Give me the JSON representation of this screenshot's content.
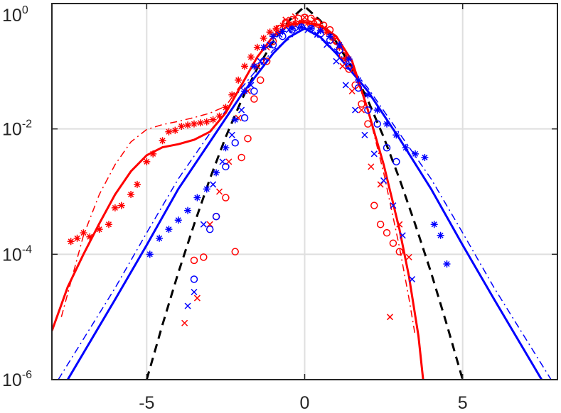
{
  "chart_data": {
    "type": "scatter",
    "title": "",
    "xlabel": "",
    "ylabel": "",
    "xlim": [
      -8,
      8
    ],
    "ylim": [
      1e-06,
      1
    ],
    "yscale": "log",
    "grid": true,
    "x_ticks": [
      {
        "value": -5,
        "label": "-5"
      },
      {
        "value": 0,
        "label": "0"
      },
      {
        "value": 5,
        "label": "5"
      }
    ],
    "y_ticks": [
      {
        "value": 1e-06,
        "base": "10",
        "exp": "-6"
      },
      {
        "value": 0.0001,
        "base": "10",
        "exp": "-4"
      },
      {
        "value": 0.01,
        "base": "10",
        "exp": "-2"
      },
      {
        "value": 1,
        "base": "10",
        "exp": "0"
      }
    ],
    "colors": {
      "red": "#ff0000",
      "blue": "#0000ff",
      "black": "#000000"
    },
    "series": [
      {
        "color": "#000000",
        "style": "dashed",
        "marker": "none",
        "x": [
          -5,
          -4.5,
          -4,
          -3.5,
          -3,
          -2.5,
          -2,
          -1.5,
          -1,
          -0.5,
          0,
          0.5,
          1,
          1.5,
          2,
          2.5,
          3,
          3.5,
          4,
          4.5,
          5
        ],
        "y": [
          1e-06,
          7.5e-06,
          5.1e-05,
          0.0003,
          0.0016,
          0.0074,
          0.0286,
          0.0929,
          0.2458,
          0.5303,
          0.9,
          0.5303,
          0.2458,
          0.0929,
          0.0286,
          0.0074,
          0.0016,
          0.0003,
          5.1e-05,
          7.5e-06,
          1e-06
        ]
      },
      {
        "color": "#0000ff",
        "style": "solid",
        "marker": "none",
        "x": [
          -7.5,
          -6,
          -5,
          -4,
          -3,
          -2,
          -1,
          -0.5,
          0,
          0.5,
          1,
          2,
          3,
          4,
          5,
          6,
          7.5
        ],
        "y": [
          1e-06,
          1.9e-05,
          0.00014,
          0.0011,
          0.0062,
          0.035,
          0.16,
          0.29,
          0.4,
          0.29,
          0.16,
          0.04,
          0.007,
          0.0011,
          0.00014,
          1.9e-05,
          1e-06
        ]
      },
      {
        "color": "#0000ff",
        "style": "dashdot",
        "marker": "none",
        "x": [
          -7.8,
          -6,
          -5,
          -4,
          -3,
          -2,
          -1,
          0,
          1,
          2,
          3,
          4,
          5,
          6,
          7.8
        ],
        "y": [
          1e-06,
          2.9e-05,
          0.00022,
          0.0016,
          0.0085,
          0.045,
          0.18,
          0.41,
          0.18,
          0.045,
          0.0085,
          0.0016,
          0.00022,
          2.9e-05,
          1e-06
        ]
      },
      {
        "color": "#ff0000",
        "style": "solid",
        "marker": "none",
        "x": [
          -8,
          -7.5,
          -7,
          -6.5,
          -6,
          -5.5,
          -5,
          -4.5,
          -4,
          -3.5,
          -3,
          -2.5,
          -2,
          -1.5,
          -1,
          -0.5,
          0,
          0.5,
          1,
          1.5,
          2,
          2.5,
          3,
          3.3,
          3.6,
          3.75
        ],
        "y": [
          6e-06,
          3e-05,
          0.0001,
          0.00031,
          0.0009,
          0.0021,
          0.0038,
          0.0051,
          0.0057,
          0.0067,
          0.009,
          0.018,
          0.05,
          0.14,
          0.3,
          0.45,
          0.5,
          0.45,
          0.3,
          0.12,
          0.02,
          0.0027,
          0.00025,
          4.5e-05,
          5e-06,
          1e-06
        ]
      },
      {
        "color": "#ff0000",
        "style": "dashdot",
        "marker": "none",
        "x": [
          -7.7,
          -7,
          -6.5,
          -6,
          -5.5,
          -5,
          -4.5,
          -4,
          -3.5,
          -3,
          -2.5,
          -2,
          -1.5,
          -1,
          -0.5,
          0,
          0.5,
          1,
          1.5,
          2,
          2.5,
          3,
          3.3,
          3.5
        ],
        "y": [
          1e-05,
          0.0002,
          0.0009,
          0.0027,
          0.0062,
          0.0098,
          0.0117,
          0.0132,
          0.0152,
          0.0178,
          0.023,
          0.052,
          0.14,
          0.3,
          0.46,
          0.53,
          0.46,
          0.3,
          0.1,
          0.02,
          0.002,
          0.00013,
          2e-05,
          5e-06
        ]
      },
      {
        "color": "#ff0000",
        "style": "none",
        "marker": "asterisk",
        "x": [
          -7.4,
          -7.2,
          -7,
          -6.8,
          -6.5,
          -6.2,
          -6,
          -5.8,
          -5.5,
          -5.3,
          -5,
          -4.8,
          -4.5,
          -4.3,
          -4.1,
          -3.9,
          -3.7,
          -3.5,
          -3.3,
          -3.1,
          -2.9,
          -2.7,
          -2.5,
          -2.3,
          -2.1,
          -1.9,
          -1.7,
          -1.5,
          -1.3,
          -1.1,
          -0.9,
          -0.7,
          -0.5,
          -0.3,
          -0.1,
          0.1,
          0.3,
          0.5,
          0.7,
          0.9,
          1.1,
          1.3
        ],
        "y": [
          0.00016,
          0.00018,
          0.00022,
          0.00019,
          0.00025,
          0.0003,
          0.00055,
          0.0006,
          0.0009,
          0.0013,
          0.003,
          0.004,
          0.0065,
          0.009,
          0.0095,
          0.011,
          0.0115,
          0.012,
          0.0125,
          0.013,
          0.014,
          0.016,
          0.022,
          0.035,
          0.06,
          0.1,
          0.14,
          0.2,
          0.28,
          0.35,
          0.4,
          0.45,
          0.47,
          0.48,
          0.5,
          0.49,
          0.46,
          0.42,
          0.35,
          0.28,
          0.2,
          0.13
        ]
      },
      {
        "color": "#ff0000",
        "style": "none",
        "marker": "circle",
        "x": [
          -3.5,
          -3.2,
          -2.8,
          -2.5,
          -2.2,
          -2.0,
          -1.8,
          -1.6,
          -1.4,
          -1.2,
          -1.0,
          -0.8,
          -0.6,
          -0.4,
          -0.2,
          0,
          0.2,
          0.4,
          0.6,
          0.8,
          1.0,
          1.2,
          1.4,
          1.6,
          1.8,
          2.0,
          2.2,
          2.4,
          2.6,
          2.8,
          3.0
        ],
        "y": [
          8e-05,
          9e-05,
          0.0004,
          0.0008,
          0.00011,
          0.0035,
          0.007,
          0.03,
          0.06,
          0.12,
          0.25,
          0.4,
          0.5,
          0.55,
          0.58,
          0.6,
          0.58,
          0.5,
          0.45,
          0.38,
          0.25,
          0.15,
          0.09,
          0.05,
          0.025,
          0.012,
          0.0006,
          0.0003,
          0.00022,
          0.00015,
          0.00011
        ]
      },
      {
        "color": "#ff0000",
        "style": "none",
        "marker": "cross",
        "x": [
          -3.8,
          -3.4,
          -3.0,
          -2.7,
          -2.4,
          -2.1,
          -1.8,
          -1.5,
          -1.2,
          -0.9,
          -0.6,
          -0.3,
          0,
          0.3,
          0.6,
          0.9,
          1.2,
          1.5,
          1.8,
          2.1,
          2.4,
          2.7,
          3.0,
          3.3
        ],
        "y": [
          8e-06,
          2e-05,
          0.0003,
          0.001,
          0.003,
          0.015,
          0.04,
          0.1,
          0.2,
          0.35,
          0.55,
          0.62,
          0.6,
          0.55,
          0.4,
          0.25,
          0.1,
          0.04,
          0.02,
          0.0025,
          0.0013,
          1e-05,
          0.0003,
          9e-05
        ]
      },
      {
        "color": "#0000ff",
        "style": "none",
        "marker": "asterisk",
        "x": [
          -4.9,
          -4.6,
          -4.3,
          -4,
          -3.7,
          -3.4,
          -3.1,
          -2.8,
          -2.5,
          -2.2,
          -1.9,
          -1.6,
          -1.3,
          -1.0,
          -0.7,
          -0.4,
          -0.1,
          0.2,
          0.5,
          0.8,
          1.1,
          1.4,
          1.7,
          2.0,
          2.3,
          2.6,
          2.9,
          3.2,
          3.5,
          3.8,
          4.1,
          4.3,
          4.5
        ],
        "y": [
          0.0001,
          0.00018,
          0.00025,
          0.00035,
          0.0005,
          0.0008,
          0.0011,
          0.002,
          0.005,
          0.014,
          0.04,
          0.1,
          0.2,
          0.3,
          0.36,
          0.4,
          0.42,
          0.4,
          0.37,
          0.3,
          0.22,
          0.13,
          0.06,
          0.035,
          0.02,
          0.012,
          0.008,
          0.005,
          0.004,
          0.0035,
          0.0003,
          0.0002,
          7e-05
        ]
      },
      {
        "color": "#0000ff",
        "style": "none",
        "marker": "circle",
        "x": [
          -3.5,
          -3.0,
          -2.8,
          -2.5,
          -2.2,
          -1.9,
          -1.6,
          -1.3,
          -1.0,
          -0.7,
          -0.4,
          -0.1,
          0.2,
          0.5,
          0.8,
          1.1,
          1.4,
          1.7,
          2.0,
          2.3,
          2.6,
          2.9
        ],
        "y": [
          4e-05,
          0.00025,
          0.0004,
          0.0025,
          0.006,
          0.015,
          0.04,
          0.12,
          0.22,
          0.3,
          0.38,
          0.42,
          0.4,
          0.33,
          0.26,
          0.18,
          0.1,
          0.045,
          0.02,
          0.012,
          0.005,
          0.003
        ]
      },
      {
        "color": "#0000ff",
        "style": "none",
        "marker": "cross",
        "x": [
          -3.7,
          -3.5,
          -3.2,
          -2.9,
          -2.6,
          -2.3,
          -2.0,
          -1.7,
          -1.4,
          -1.1,
          -0.8,
          -0.5,
          -0.2,
          0.1,
          0.4,
          0.7,
          1.0,
          1.3,
          1.6,
          1.9,
          2.2,
          2.5,
          2.8,
          3.1,
          3.4
        ],
        "y": [
          1.5e-05,
          2.5e-05,
          0.0003,
          0.0013,
          0.003,
          0.008,
          0.02,
          0.05,
          0.12,
          0.22,
          0.32,
          0.38,
          0.4,
          0.38,
          0.32,
          0.22,
          0.12,
          0.05,
          0.02,
          0.008,
          0.004,
          0.0015,
          0.0006,
          0.0002,
          4e-05
        ]
      }
    ]
  }
}
